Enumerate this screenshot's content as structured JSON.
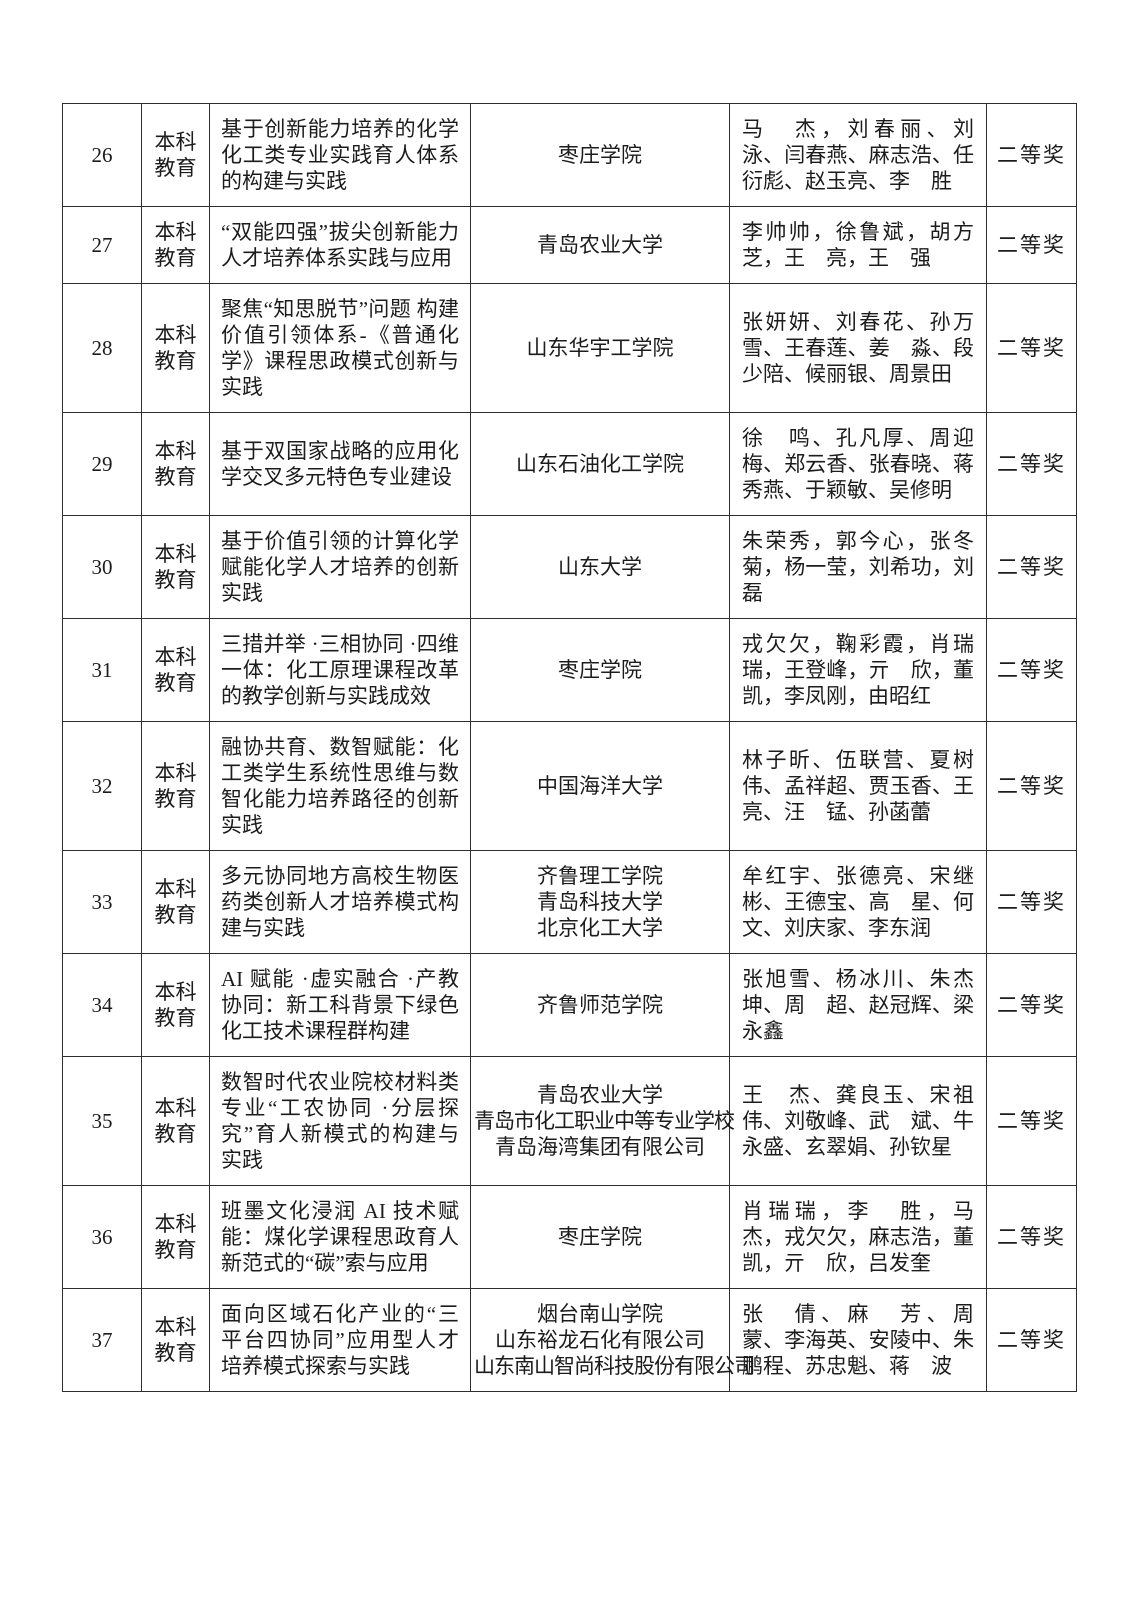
{
  "page": {
    "background": "#ffffff",
    "text_color": "#1c1c1c",
    "border_color": "#2e2e2e",
    "award_color": "#1c1c1c"
  },
  "table": {
    "rows": [
      {
        "no": "26",
        "category": "本科教育",
        "title": "基于创新能力培养的化学化工类专业实践育人体系的构建与实践",
        "institutions": [
          "枣庄学院"
        ],
        "members": "马　杰，刘春丽、刘　泳、闫春燕、麻志浩、任衍彪、赵玉亮、李　胜",
        "award": "二等奖"
      },
      {
        "no": "27",
        "category": "本科教育",
        "title": "“双能四强”拔尖创新能力人才培养体系实践与应用",
        "institutions": [
          "青岛农业大学"
        ],
        "members": "李帅帅，徐鲁斌，胡方芝，王　亮，王　强",
        "award": "二等奖"
      },
      {
        "no": "28",
        "category": "本科教育",
        "title": "聚焦“知思脱节”问题 构建价值引领体系-《普通化学》课程思政模式创新与实践",
        "institutions": [
          "山东华宇工学院"
        ],
        "members": "张妍妍、刘春花、孙万雪、王春莲、姜　淼、段少陪、候丽银、周景田",
        "award": "二等奖"
      },
      {
        "no": "29",
        "category": "本科教育",
        "title": "基于双国家战略的应用化学交叉多元特色专业建设",
        "institutions": [
          "山东石油化工学院"
        ],
        "members": "徐　鸣、孔凡厚、周迎梅、郑云香、张春晓、蒋秀燕、于颖敏、吴修明",
        "award": "二等奖"
      },
      {
        "no": "30",
        "category": "本科教育",
        "title": "基于价值引领的计算化学赋能化学人才培养的创新实践",
        "institutions": [
          "山东大学"
        ],
        "members": "朱荣秀，郭今心，张冬菊，杨一莹，刘希功，刘　磊",
        "award": "二等奖"
      },
      {
        "no": "31",
        "category": "本科教育",
        "title": "三措并举 ·三相协同 ·四维一体：化工原理课程改革的教学创新与实践成效",
        "institutions": [
          "枣庄学院"
        ],
        "members": "戎欠欠，鞠彩霞，肖瑞瑞，王登峰，亓　欣，董　凯，李凤刚，由昭红",
        "award": "二等奖"
      },
      {
        "no": "32",
        "category": "本科教育",
        "title": "融协共育、数智赋能：化工类学生系统性思维与数智化能力培养路径的创新实践",
        "institutions": [
          "中国海洋大学"
        ],
        "members": "林子昕、伍联营、夏树伟、孟祥超、贾玉香、王　亮、汪　锰、孙菡蕾",
        "award": "二等奖"
      },
      {
        "no": "33",
        "category": "本科教育",
        "title": "多元协同地方高校生物医药类创新人才培养模式构建与实践",
        "institutions": [
          "齐鲁理工学院",
          "青岛科技大学",
          "北京化工大学"
        ],
        "members": "牟红宇、张德亮、宋继彬、王德宝、高　星、何　文、刘庆家、李东润",
        "award": "二等奖"
      },
      {
        "no": "34",
        "category": "本科教育",
        "title": "AI 赋能 ·虚实融合 ·产教协同：新工科背景下绿色化工技术课程群构建",
        "institutions": [
          "齐鲁师范学院"
        ],
        "members": "张旭雪、杨冰川、朱杰坤、周　超、赵冠辉、梁永鑫",
        "award": "二等奖"
      },
      {
        "no": "35",
        "category": "本科教育",
        "title": "数智时代农业院校材料类专业“工农协同 ·分层探究”育人新模式的构建与实践",
        "institutions": [
          "青岛农业大学",
          "青岛市化工职业中等专业学校",
          "青岛海湾集团有限公司"
        ],
        "members": "王　杰、龚良玉、宋祖伟、刘敬峰、武　斌、牛永盛、玄翠娟、孙钦星",
        "award": "二等奖"
      },
      {
        "no": "36",
        "category": "本科教育",
        "title": "班墨文化浸润 AI 技术赋能：煤化学课程思政育人新范式的“碳”索与应用",
        "institutions": [
          "枣庄学院"
        ],
        "members": "肖瑞瑞，李　胜，马　杰，戎欠欠，麻志浩，董　凯，亓　欣，吕发奎",
        "award": "二等奖"
      },
      {
        "no": "37",
        "category": "本科教育",
        "title": "面向区域石化产业的“三平台四协同”应用型人才培养模式探索与实践",
        "institutions": [
          "烟台南山学院",
          "山东裕龙石化有限公司",
          "山东南山智尚科技股份有限公司"
        ],
        "members": "张　倩、麻　芳、周　蒙、李海英、安陵中、朱鹏程、苏忠魁、蒋　波",
        "award": "二等奖"
      }
    ]
  }
}
